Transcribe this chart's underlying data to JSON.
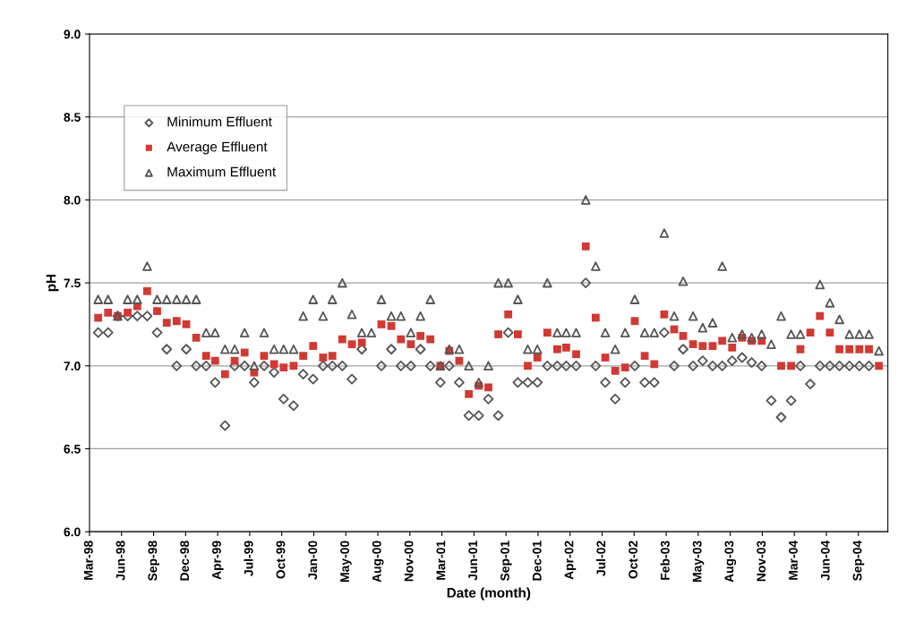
{
  "chart_data": {
    "type": "scatter",
    "xlabel": "Date (month)",
    "ylabel": "pH",
    "x": [
      "1998-03-28",
      "1998-04-28",
      "1998-05-28",
      "1998-06-28",
      "1998-07-28",
      "1998-08-28",
      "1998-09-28",
      "1998-10-28",
      "1998-11-28",
      "1998-12-28",
      "1999-01-28",
      "1999-02-28",
      "1999-03-28",
      "1999-04-28",
      "1999-05-28",
      "1999-06-28",
      "1999-07-28",
      "1999-08-28",
      "1999-09-28",
      "1999-10-28",
      "1999-11-28",
      "1999-12-28",
      "2000-01-28",
      "2000-02-28",
      "2000-03-28",
      "2000-04-28",
      "2000-05-28",
      "2000-06-28",
      "2000-07-28",
      "2000-08-28",
      "2000-09-28",
      "2000-10-28",
      "2000-11-28",
      "2000-12-28",
      "2001-01-28",
      "2001-02-28",
      "2001-03-28",
      "2001-04-28",
      "2001-05-28",
      "2001-06-28",
      "2001-07-28",
      "2001-08-28",
      "2001-09-28",
      "2001-10-28",
      "2001-11-28",
      "2001-12-28",
      "2002-01-28",
      "2002-02-28",
      "2002-03-28",
      "2002-04-28",
      "2002-05-28",
      "2002-06-28",
      "2002-07-28",
      "2002-08-28",
      "2002-09-28",
      "2002-10-28",
      "2002-11-28",
      "2002-12-28",
      "2003-01-28",
      "2003-02-28",
      "2003-03-28",
      "2003-04-28",
      "2003-05-28",
      "2003-06-28",
      "2003-07-28",
      "2003-08-28",
      "2003-09-28",
      "2003-10-28",
      "2003-11-28",
      "2003-12-28",
      "2004-01-28",
      "2004-02-28",
      "2004-03-28",
      "2004-04-28",
      "2004-05-28",
      "2004-06-28",
      "2004-07-28",
      "2004-08-28",
      "2004-09-28",
      "2004-10-28",
      "2004-11-28"
    ],
    "series": [
      {
        "name": "Minimum Effluent",
        "color": "#555555",
        "marker": "diamond",
        "values": [
          7.2,
          7.2,
          7.3,
          7.3,
          7.3,
          7.3,
          7.2,
          7.1,
          7.0,
          7.1,
          7.0,
          7.0,
          6.9,
          6.64,
          7.0,
          7.0,
          6.9,
          7.0,
          6.96,
          6.8,
          6.76,
          6.95,
          6.92,
          7.0,
          7.0,
          7.0,
          6.92,
          7.1,
          null,
          7.0,
          7.1,
          7.0,
          7.0,
          7.1,
          7.0,
          6.9,
          7.0,
          6.9,
          6.7,
          6.7,
          6.8,
          6.7,
          7.2,
          6.9,
          6.9,
          6.9,
          7.0,
          7.0,
          7.0,
          7.0,
          7.5,
          7.0,
          6.9,
          6.8,
          6.9,
          7.0,
          6.9,
          6.9,
          7.2,
          7.0,
          7.1,
          7.0,
          7.03,
          7.0,
          7.0,
          7.03,
          7.05,
          7.02,
          7.0,
          6.79,
          6.69,
          6.79,
          7.0,
          6.89,
          7.0,
          7.0,
          7.0,
          7.0,
          7.0,
          7.0,
          null
        ]
      },
      {
        "name": "Average Effluent",
        "color": "#d03a32",
        "marker": "square",
        "values": [
          7.29,
          7.32,
          7.3,
          7.32,
          7.36,
          7.45,
          7.33,
          7.26,
          7.27,
          7.25,
          7.17,
          7.06,
          7.03,
          6.95,
          7.03,
          7.08,
          6.96,
          7.06,
          7.01,
          6.99,
          7.0,
          7.06,
          7.12,
          7.05,
          7.06,
          7.16,
          7.13,
          7.14,
          null,
          7.25,
          7.24,
          7.16,
          7.13,
          7.18,
          7.16,
          7.0,
          7.09,
          7.03,
          6.83,
          6.88,
          6.87,
          7.19,
          7.31,
          7.19,
          7.0,
          7.05,
          7.2,
          7.1,
          7.11,
          7.07,
          7.72,
          7.29,
          7.05,
          6.97,
          6.99,
          7.27,
          7.06,
          7.01,
          7.31,
          7.22,
          7.18,
          7.13,
          7.12,
          7.12,
          7.15,
          7.11,
          7.17,
          7.15,
          7.15,
          null,
          7.0,
          7.0,
          7.1,
          7.2,
          7.3,
          7.2,
          7.1,
          7.1,
          7.1,
          7.1,
          7.0
        ]
      },
      {
        "name": "Maximum Effluent",
        "color": "#555555",
        "marker": "triangle",
        "values": [
          7.4,
          7.4,
          7.3,
          7.4,
          7.4,
          7.6,
          7.4,
          7.4,
          7.4,
          7.4,
          7.4,
          7.2,
          7.2,
          7.1,
          7.1,
          7.2,
          7.0,
          7.2,
          7.1,
          7.1,
          7.1,
          7.3,
          7.4,
          7.3,
          7.4,
          7.5,
          7.31,
          7.2,
          7.2,
          7.4,
          7.3,
          7.3,
          7.2,
          7.3,
          7.4,
          7.0,
          7.1,
          7.1,
          7.0,
          6.9,
          7.0,
          7.5,
          7.5,
          7.4,
          7.1,
          7.1,
          7.5,
          7.2,
          7.2,
          7.2,
          8.0,
          7.6,
          7.2,
          7.1,
          7.2,
          7.4,
          7.2,
          7.2,
          7.8,
          7.3,
          7.51,
          7.3,
          7.23,
          7.26,
          7.6,
          7.17,
          7.19,
          7.17,
          7.19,
          7.13,
          7.3,
          7.19,
          7.19,
          null,
          7.49,
          7.38,
          7.28,
          7.19,
          7.19,
          7.19,
          7.09
        ]
      }
    ],
    "xlim": [
      "1998-03-01",
      "2004-12-26"
    ],
    "xticks": [
      {
        "value": "1998-03-01",
        "label": "Mar-98"
      },
      {
        "value": "1998-06-09",
        "label": "Jun-98"
      },
      {
        "value": "1998-09-17",
        "label": "Sep-98"
      },
      {
        "value": "1998-12-26",
        "label": "Dec-98"
      },
      {
        "value": "1999-04-05",
        "label": "Apr-99"
      },
      {
        "value": "1999-07-14",
        "label": "Jul-99"
      },
      {
        "value": "1999-10-22",
        "label": "Oct-99"
      },
      {
        "value": "2000-01-30",
        "label": "Jan-00"
      },
      {
        "value": "2000-05-09",
        "label": "May-00"
      },
      {
        "value": "2000-08-17",
        "label": "Aug-00"
      },
      {
        "value": "2000-11-25",
        "label": "Nov-00"
      },
      {
        "value": "2001-03-05",
        "label": "Mar-01"
      },
      {
        "value": "2001-06-13",
        "label": "Jun-01"
      },
      {
        "value": "2001-09-21",
        "label": "Sep-01"
      },
      {
        "value": "2001-12-30",
        "label": "Dec-01"
      },
      {
        "value": "2002-04-09",
        "label": "Apr-02"
      },
      {
        "value": "2002-07-18",
        "label": "Jul-02"
      },
      {
        "value": "2002-10-26",
        "label": "Oct-02"
      },
      {
        "value": "2003-02-03",
        "label": "Feb-03"
      },
      {
        "value": "2003-05-14",
        "label": "May-03"
      },
      {
        "value": "2003-08-22",
        "label": "Aug-03"
      },
      {
        "value": "2003-11-30",
        "label": "Nov-03"
      },
      {
        "value": "2004-03-09",
        "label": "Mar-04"
      },
      {
        "value": "2004-06-17",
        "label": "Jun-04"
      },
      {
        "value": "2004-09-25",
        "label": "Sep-04"
      }
    ],
    "ylim": [
      6.0,
      9.0
    ],
    "yticks": [
      {
        "value": 6.0,
        "label": "6.0"
      },
      {
        "value": 6.5,
        "label": "6.5"
      },
      {
        "value": 7.0,
        "label": "7.0"
      },
      {
        "value": 7.5,
        "label": "7.5"
      },
      {
        "value": 8.0,
        "label": "8.0"
      },
      {
        "value": 8.5,
        "label": "8.5"
      },
      {
        "value": 9.0,
        "label": "9.0"
      }
    ],
    "grid": "y",
    "legend": "top left"
  }
}
